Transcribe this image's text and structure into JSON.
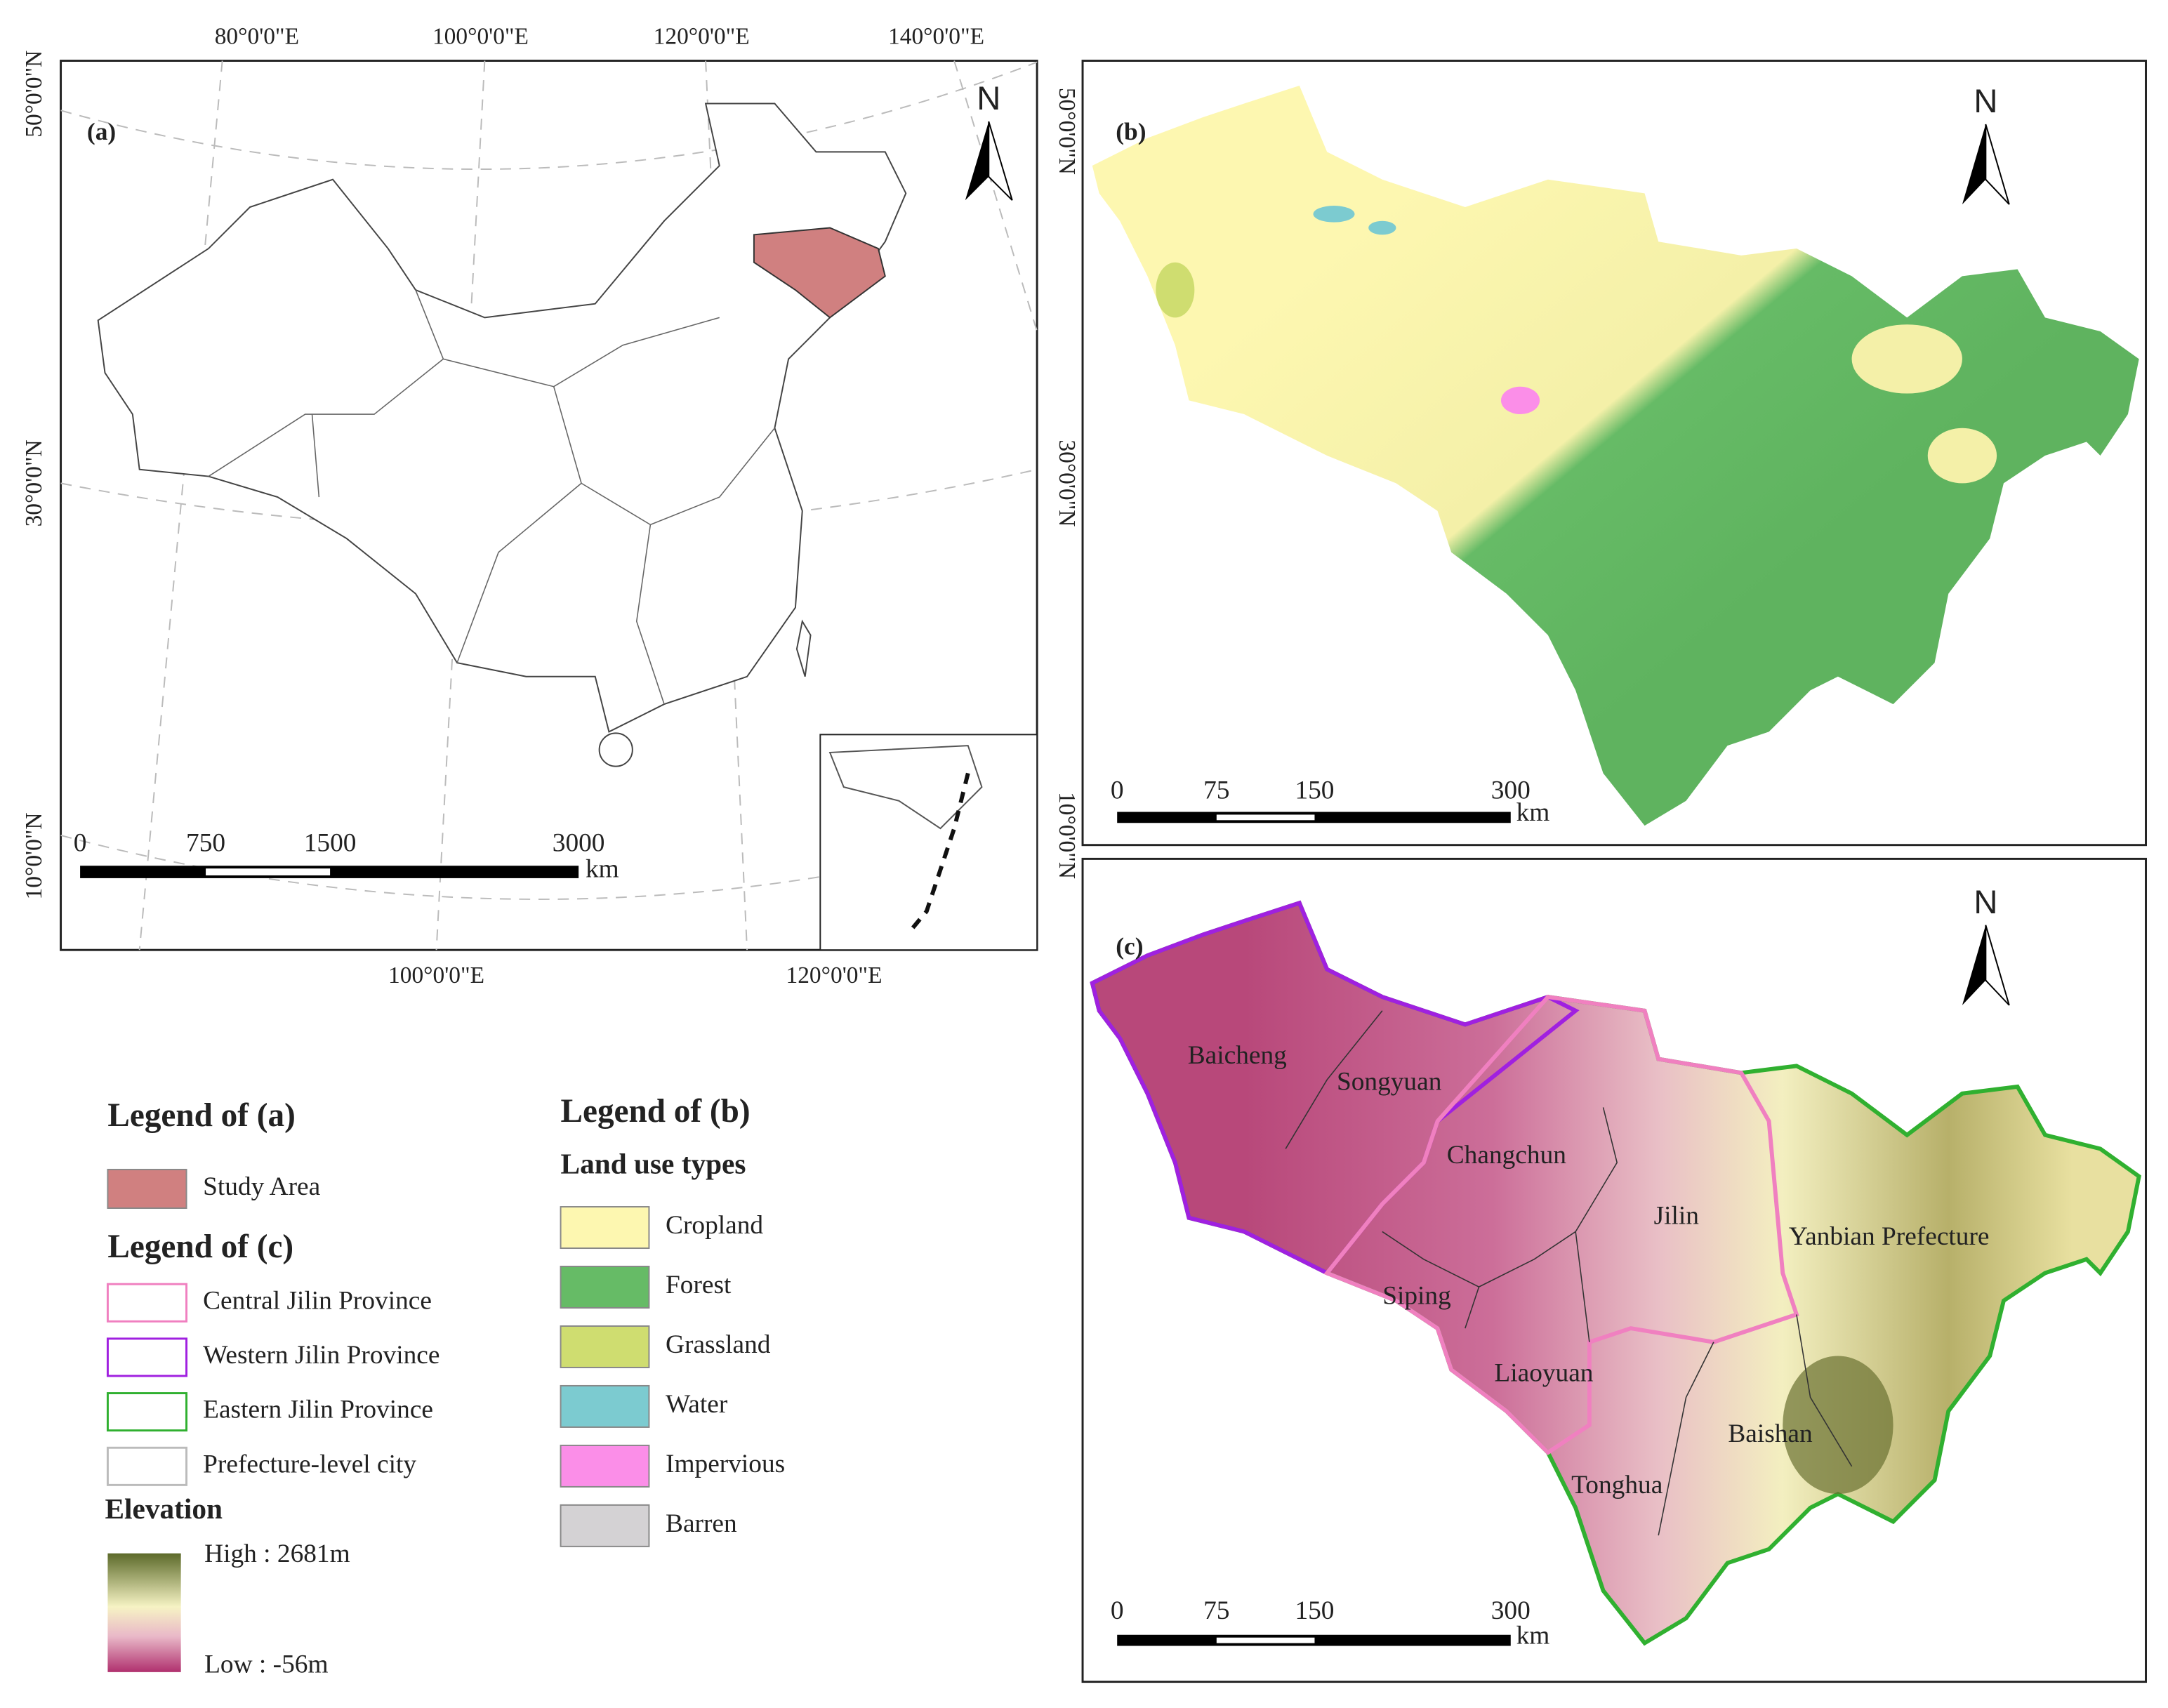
{
  "panels": {
    "a": {
      "label": "(a)",
      "north": "N",
      "top_lon": [
        "80°0'0\"E",
        "100°0'0\"E",
        "120°0'0\"E",
        "140°0'0\"E"
      ],
      "bottom_lon": [
        "100°0'0\"E",
        "120°0'0\"E"
      ],
      "lat": [
        "50°0'0\"N",
        "30°0'0\"N",
        "10°0'0\"N"
      ],
      "scale": [
        "0",
        "750",
        "1500",
        "3000"
      ],
      "unit": "km",
      "study_color": "#d08080"
    },
    "b": {
      "label": "(b)",
      "north": "N",
      "lat": [
        "50°0'0\"N",
        "30°0'0\"N",
        "10°0'0\"N"
      ],
      "scale": [
        "0",
        "75",
        "150",
        "300"
      ],
      "unit": "km"
    },
    "c": {
      "label": "(c)",
      "north": "N",
      "cities": [
        "Baicheng",
        "Songyuan",
        "Changchun",
        "Jilin",
        "Yanbian Prefecture",
        "Siping",
        "Liaoyuan",
        "Baishan",
        "Tonghua"
      ],
      "scale": [
        "0",
        "75",
        "150",
        "300"
      ],
      "unit": "km"
    }
  },
  "legend_a": {
    "title": "Legend of (a)",
    "items": [
      {
        "label": "Study Area",
        "color": "#d08080"
      }
    ]
  },
  "legend_c": {
    "title": "Legend of (c)",
    "items": [
      {
        "label": "Central Jilin Province",
        "color": "#f080c0"
      },
      {
        "label": "Western Jilin Province",
        "color": "#a020e0"
      },
      {
        "label": "Eastern Jilin Province",
        "color": "#30b030"
      },
      {
        "label": "Prefecture-level city",
        "color": "#bbbbbb"
      }
    ]
  },
  "elevation": {
    "title": "Elevation",
    "high": "High : 2681m",
    "low": "Low : -56m"
  },
  "legend_b": {
    "title": "Legend of (b)",
    "subtitle": "Land use types",
    "items": [
      {
        "label": "Cropland",
        "color": "#fdf7b0"
      },
      {
        "label": "Forest",
        "color": "#66bb66"
      },
      {
        "label": "Grassland",
        "color": "#cfdd70"
      },
      {
        "label": "Water",
        "color": "#7ccbd0"
      },
      {
        "label": "Impervious",
        "color": "#fb8ee8"
      },
      {
        "label": "Barren",
        "color": "#d4d2d4"
      }
    ]
  }
}
